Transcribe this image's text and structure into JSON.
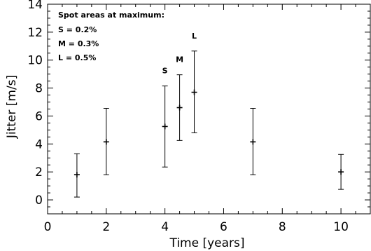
{
  "chart_data": {
    "type": "scatter",
    "title": "",
    "xlabel": "Time [years]",
    "ylabel": "Jitter [m/s]",
    "xlim": [
      0,
      11
    ],
    "ylim": [
      -1,
      14
    ],
    "x_ticks": [
      0,
      2,
      4,
      6,
      8,
      10
    ],
    "y_ticks": [
      0,
      2,
      4,
      6,
      8,
      10,
      12,
      14
    ],
    "grid": false,
    "series": [
      {
        "points": [
          {
            "x": 1,
            "y": 1.8,
            "err_low": 0.2,
            "err_high": 3.3
          },
          {
            "x": 2,
            "y": 4.15,
            "err_low": 1.8,
            "err_high": 6.55
          },
          {
            "x": 4,
            "y": 5.25,
            "err_low": 2.35,
            "err_high": 8.15
          },
          {
            "x": 4.5,
            "y": 6.6,
            "err_low": 4.25,
            "err_high": 8.95
          },
          {
            "x": 5,
            "y": 7.7,
            "err_low": 4.8,
            "err_high": 10.65
          },
          {
            "x": 7,
            "y": 4.15,
            "err_low": 1.8,
            "err_high": 6.55
          },
          {
            "x": 10,
            "y": 2.0,
            "err_low": 0.75,
            "err_high": 3.25
          }
        ]
      }
    ],
    "annotations": {
      "heading": "Spot areas at maximum:",
      "lines": [
        "S = 0.2%",
        "M = 0.3%",
        "L = 0.5%"
      ]
    },
    "point_labels": [
      {
        "x": 4,
        "y": 8.15,
        "text": "S"
      },
      {
        "x": 4.5,
        "y": 8.95,
        "text": "M"
      },
      {
        "x": 5,
        "y": 10.65,
        "text": "L"
      }
    ]
  }
}
